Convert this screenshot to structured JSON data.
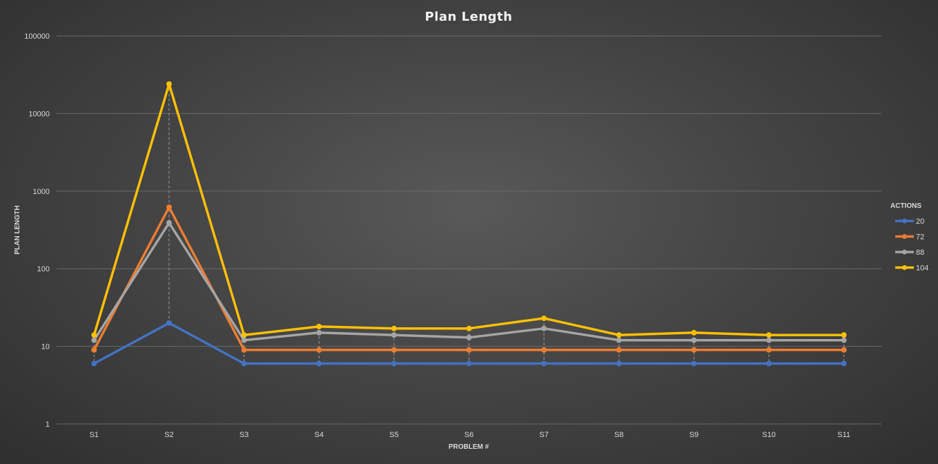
{
  "chart_data": {
    "type": "line",
    "title": "Plan Length",
    "xlabel": "PROBLEM #",
    "ylabel": "PLAN LENGTH",
    "yscale": "log",
    "ylim": [
      1,
      100000
    ],
    "yticks": [
      "1",
      "10",
      "100",
      "1000",
      "10000",
      "100000"
    ],
    "grid": true,
    "legend_placement": "right",
    "legend_title": "ACTIONS",
    "categories": [
      "S1",
      "S2",
      "S3",
      "S4",
      "S5",
      "S6",
      "S7",
      "S8",
      "S9",
      "S10",
      "S11"
    ],
    "series": [
      {
        "name": "20",
        "color": "#4472C4",
        "values": [
          6,
          20,
          6,
          6,
          6,
          6,
          6,
          6,
          6,
          6,
          6
        ]
      },
      {
        "name": "72",
        "color": "#ED7D31",
        "values": [
          9,
          620,
          9,
          9,
          9,
          9,
          9,
          9,
          9,
          9,
          9
        ]
      },
      {
        "name": "88",
        "color": "#A5A5A5",
        "values": [
          12,
          390,
          12,
          15,
          14,
          13,
          17,
          12,
          12,
          12,
          12
        ]
      },
      {
        "name": "104",
        "color": "#FFC000",
        "values": [
          14,
          24000,
          14,
          18,
          17,
          17,
          23,
          14,
          15,
          14,
          14
        ]
      }
    ]
  }
}
